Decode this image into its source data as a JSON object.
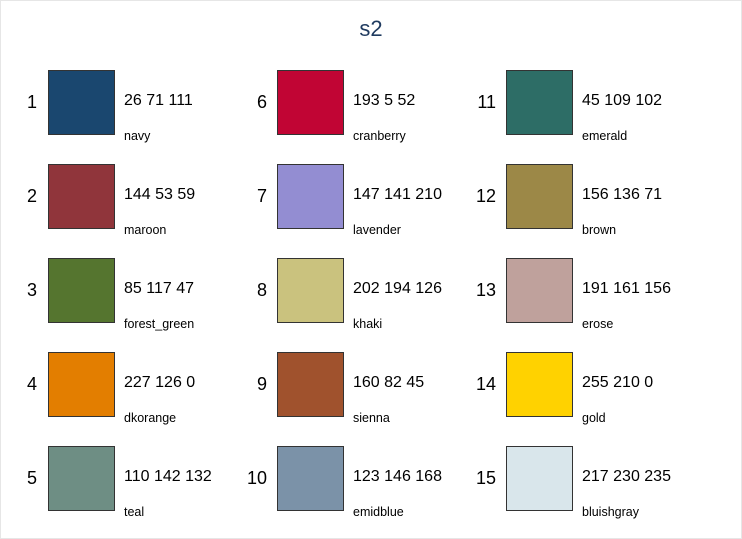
{
  "title": "s2",
  "colors": [
    {
      "number": "1",
      "rgb": "26 71 111",
      "name": "navy",
      "hex": "#1a476f"
    },
    {
      "number": "2",
      "rgb": "144 53 59",
      "name": "maroon",
      "hex": "#90353b"
    },
    {
      "number": "3",
      "rgb": "85 117 47",
      "name": "forest_green",
      "hex": "#55752f"
    },
    {
      "number": "4",
      "rgb": "227 126 0",
      "name": "dkorange",
      "hex": "#e37e00"
    },
    {
      "number": "5",
      "rgb": "110 142 132",
      "name": "teal",
      "hex": "#6e8e84"
    },
    {
      "number": "6",
      "rgb": "193 5 52",
      "name": "cranberry",
      "hex": "#c10534"
    },
    {
      "number": "7",
      "rgb": "147 141 210",
      "name": "lavender",
      "hex": "#938dd2"
    },
    {
      "number": "8",
      "rgb": "202 194 126",
      "name": "khaki",
      "hex": "#cac27e"
    },
    {
      "number": "9",
      "rgb": "160 82 45",
      "name": "sienna",
      "hex": "#a0522d"
    },
    {
      "number": "10",
      "rgb": "123 146 168",
      "name": "emidblue",
      "hex": "#7b92a8"
    },
    {
      "number": "11",
      "rgb": "45 109 102",
      "name": "emerald",
      "hex": "#2d6d66"
    },
    {
      "number": "12",
      "rgb": "156 136 71",
      "name": "brown",
      "hex": "#9c8847"
    },
    {
      "number": "13",
      "rgb": "191 161 156",
      "name": "erose",
      "hex": "#bfa19c"
    },
    {
      "number": "14",
      "rgb": "255 210 0",
      "name": "gold",
      "hex": "#ffd200"
    },
    {
      "number": "15",
      "rgb": "217 230 235",
      "name": "bluishgray",
      "hex": "#d9e6eb"
    }
  ]
}
